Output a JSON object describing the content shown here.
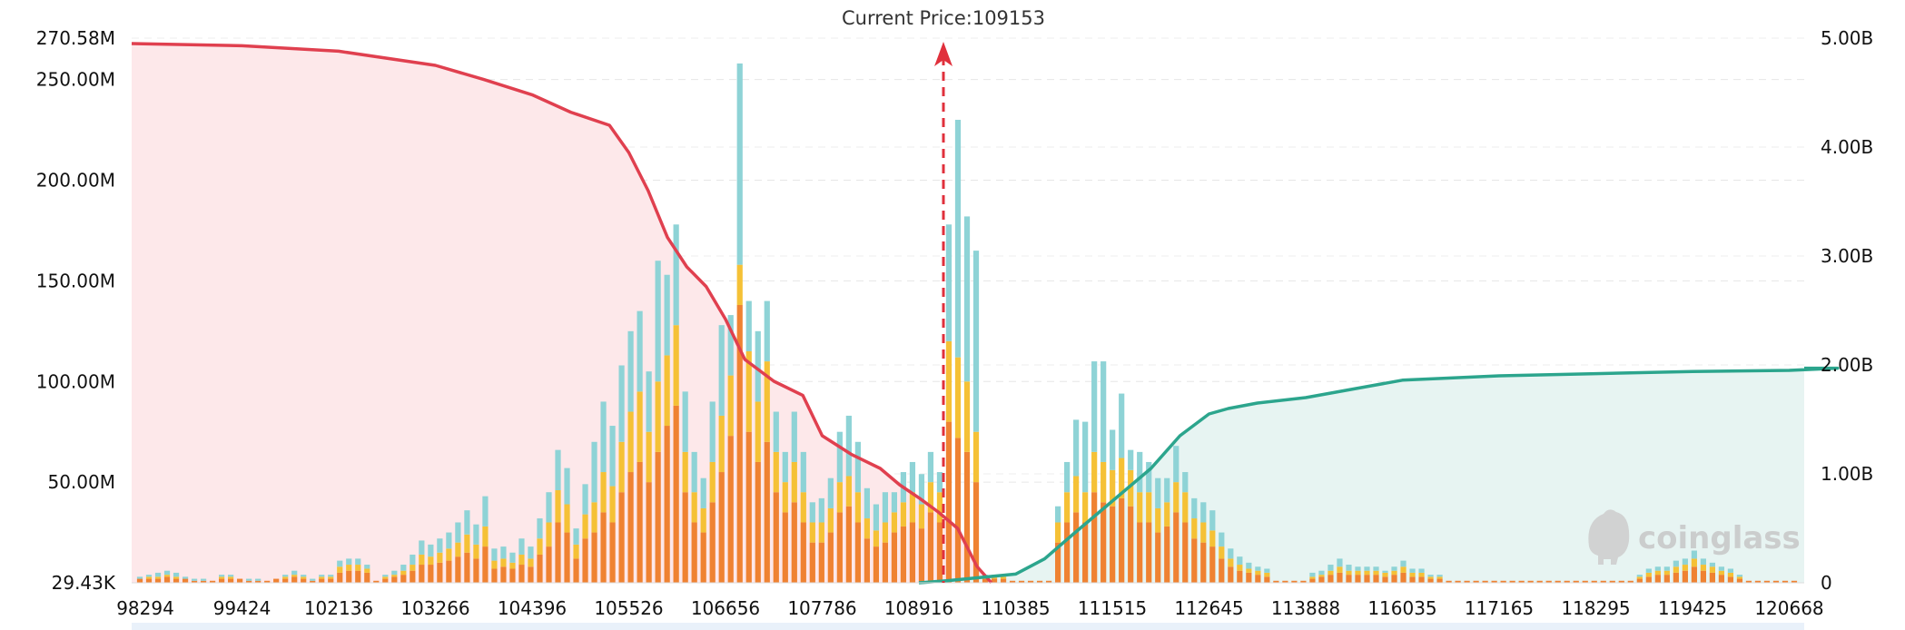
{
  "chart_data": {
    "type": "bar",
    "title": "",
    "annotation": "Current Price:109153",
    "current_price": 109153,
    "x_tick_labels": [
      "98294",
      "99424",
      "102136",
      "103266",
      "104396",
      "105526",
      "106656",
      "107786",
      "108916",
      "110385",
      "111515",
      "112645",
      "113888",
      "116035",
      "117165",
      "118295",
      "119425",
      "120668"
    ],
    "left_axis": {
      "tick_labels": [
        "29.43K",
        "50.00M",
        "100.00M",
        "150.00M",
        "200.00M",
        "250.00M",
        "270.58M"
      ],
      "tick_values": [
        0,
        50,
        100,
        150,
        200,
        250,
        270.58
      ],
      "unit": "M",
      "ylim": [
        0,
        270.58
      ]
    },
    "right_axis": {
      "tick_labels": [
        "0",
        "1.00B",
        "2.00B",
        "3.00B",
        "4.00B",
        "5.00B"
      ],
      "tick_values": [
        0,
        1,
        2,
        3,
        4,
        5
      ],
      "unit": "B",
      "ylim": [
        0,
        5.2
      ]
    },
    "grid": true,
    "colors": {
      "tier_1": "#ef8232",
      "tier_2": "#f5c136",
      "tier_3": "#8ed3d6",
      "long_cumulative": "#e0404f",
      "long_area": "#fde8ea",
      "short_cumulative": "#2ca58d",
      "short_area": "#e7f4f2",
      "current_price_line": "#e0303c",
      "grid": "#e6e6e6"
    },
    "bar_series": [
      {
        "name": "",
        "color": "tier_1",
        "values": [
          2,
          2,
          2,
          3,
          2,
          2,
          1,
          1,
          1,
          2,
          2,
          2,
          1,
          1,
          1,
          2,
          2,
          3,
          2,
          1,
          2,
          2,
          5,
          6,
          6,
          5,
          1,
          2,
          3,
          4,
          6,
          9,
          9,
          10,
          11,
          13,
          15,
          12,
          18,
          7,
          8,
          7,
          9,
          8,
          14,
          18,
          30,
          25,
          12,
          22,
          25,
          35,
          30,
          45,
          55,
          60,
          50,
          65,
          78,
          88,
          45,
          30,
          25,
          40,
          55,
          73,
          138,
          75,
          60,
          70,
          45,
          35,
          40,
          30,
          20,
          20,
          25,
          35,
          38,
          30,
          22,
          18,
          20,
          25,
          28,
          30,
          27,
          35,
          30,
          80,
          72,
          65,
          50,
          2,
          2,
          2,
          1,
          1,
          1,
          1,
          1,
          20,
          30,
          35,
          30,
          45,
          40,
          38,
          42,
          38,
          30,
          30,
          25,
          28,
          35,
          30,
          22,
          20,
          18,
          12,
          8,
          6,
          5,
          4,
          3,
          1,
          1,
          1,
          1,
          2,
          3,
          4,
          5,
          4,
          4,
          4,
          4,
          3,
          4,
          5,
          3,
          3,
          2,
          2,
          1,
          1,
          1,
          1,
          1,
          1,
          1,
          1,
          1,
          1,
          1,
          1,
          1,
          1,
          1,
          1,
          1,
          1,
          1,
          1,
          1,
          2,
          3,
          4,
          4,
          5,
          6,
          8,
          6,
          5,
          4,
          3,
          2,
          1,
          1,
          1,
          1,
          1,
          1
        ]
      },
      {
        "name": "",
        "color": "tier_2",
        "values": [
          0,
          1,
          1,
          1,
          1,
          0,
          0,
          0,
          0,
          1,
          1,
          0,
          0,
          0,
          0,
          0,
          1,
          1,
          1,
          0,
          1,
          1,
          3,
          3,
          3,
          2,
          0,
          1,
          1,
          2,
          3,
          5,
          4,
          5,
          6,
          7,
          9,
          7,
          10,
          4,
          4,
          3,
          5,
          4,
          8,
          12,
          16,
          14,
          7,
          12,
          15,
          20,
          18,
          25,
          30,
          35,
          25,
          35,
          35,
          40,
          20,
          15,
          12,
          20,
          28,
          30,
          20,
          40,
          30,
          40,
          20,
          15,
          20,
          15,
          10,
          10,
          12,
          15,
          15,
          15,
          10,
          8,
          10,
          10,
          12,
          15,
          12,
          15,
          15,
          40,
          40,
          35,
          25,
          1,
          1,
          1,
          0,
          0,
          0,
          0,
          0,
          10,
          15,
          18,
          15,
          20,
          20,
          18,
          20,
          18,
          15,
          15,
          12,
          12,
          15,
          15,
          10,
          10,
          8,
          6,
          4,
          3,
          2,
          2,
          2,
          0,
          0,
          0,
          0,
          1,
          1,
          2,
          3,
          2,
          2,
          2,
          2,
          2,
          2,
          3,
          2,
          2,
          1,
          1,
          0,
          0,
          0,
          0,
          0,
          0,
          0,
          0,
          0,
          0,
          0,
          0,
          0,
          0,
          0,
          0,
          0,
          0,
          0,
          0,
          0,
          1,
          2,
          2,
          2,
          3,
          3,
          4,
          3,
          3,
          2,
          2,
          1,
          0,
          0,
          0,
          0,
          0,
          0
        ]
      },
      {
        "name": "",
        "color": "tier_3",
        "values": [
          1,
          1,
          2,
          2,
          2,
          1,
          1,
          1,
          0,
          1,
          1,
          0,
          1,
          1,
          0,
          0,
          1,
          2,
          1,
          1,
          1,
          1,
          3,
          3,
          3,
          2,
          0,
          1,
          2,
          3,
          5,
          7,
          6,
          7,
          8,
          10,
          12,
          10,
          15,
          6,
          6,
          5,
          8,
          6,
          10,
          15,
          20,
          18,
          8,
          15,
          30,
          35,
          30,
          38,
          40,
          40,
          30,
          60,
          40,
          50,
          30,
          20,
          15,
          30,
          45,
          30,
          100,
          25,
          35,
          30,
          20,
          15,
          25,
          20,
          10,
          12,
          15,
          25,
          30,
          25,
          15,
          13,
          15,
          10,
          15,
          15,
          15,
          15,
          10,
          58,
          118,
          82,
          90,
          1,
          1,
          1,
          0,
          0,
          0,
          0,
          0,
          8,
          15,
          28,
          35,
          45,
          50,
          20,
          32,
          10,
          20,
          15,
          15,
          12,
          18,
          10,
          10,
          10,
          10,
          7,
          5,
          4,
          3,
          2,
          2,
          0,
          0,
          0,
          0,
          2,
          2,
          3,
          4,
          3,
          2,
          2,
          2,
          1,
          2,
          3,
          2,
          2,
          1,
          1,
          0,
          0,
          0,
          0,
          0,
          0,
          0,
          0,
          0,
          0,
          0,
          0,
          0,
          0,
          0,
          0,
          0,
          0,
          0,
          0,
          0,
          1,
          2,
          2,
          2,
          3,
          3,
          4,
          3,
          2,
          2,
          2,
          1,
          0,
          0,
          0,
          0,
          0,
          0
        ]
      }
    ],
    "cumulative_series": [
      {
        "name": "",
        "side": "long",
        "x_tick_index": [
          0,
          1,
          2,
          3,
          3.5,
          4,
          4.4,
          4.8,
          5,
          5.2,
          5.4,
          5.6,
          5.8,
          6,
          6.2,
          6.5,
          6.8,
          7,
          7.3,
          7.6,
          7.8,
          8,
          8.2,
          8.4,
          8.6,
          8.75
        ],
        "y": [
          4.95,
          4.93,
          4.88,
          4.75,
          4.62,
          4.48,
          4.32,
          4.2,
          3.95,
          3.6,
          3.17,
          2.9,
          2.72,
          2.42,
          2.05,
          1.85,
          1.72,
          1.35,
          1.18,
          1.05,
          0.9,
          0.78,
          0.65,
          0.5,
          0.15,
          0.0
        ]
      },
      {
        "name": "",
        "side": "short",
        "x_tick_index": [
          8.0,
          8.3,
          9.0,
          9.3,
          9.6,
          10.0,
          10.4,
          10.7,
          11.0,
          11.2,
          11.5,
          12.0,
          12.5,
          13.0,
          14.0,
          15.0,
          16.0,
          17.0,
          17.5
        ],
        "y": [
          0.0,
          0.02,
          0.08,
          0.22,
          0.45,
          0.75,
          1.05,
          1.35,
          1.55,
          1.6,
          1.65,
          1.7,
          1.78,
          1.86,
          1.9,
          1.92,
          1.94,
          1.95,
          1.97
        ]
      }
    ]
  },
  "watermark": {
    "text": "coinglass",
    "icon": "coinglass-logo-icon"
  }
}
